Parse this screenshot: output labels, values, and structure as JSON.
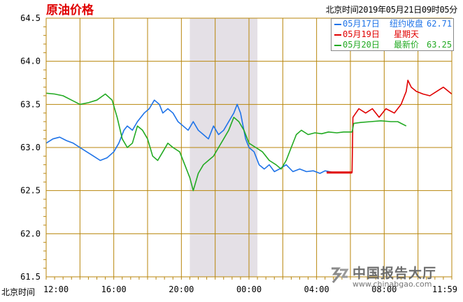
{
  "title": "原油价格",
  "timestamp": "北京时间2019年05月21日09时05分",
  "x_axis_prefix": "北京时间",
  "watermark": {
    "name": "中国报告大厅",
    "url": "www.chinabgao.com"
  },
  "chart_data": {
    "type": "line",
    "title": "原油价格",
    "ylim": [
      61.5,
      64.5
    ],
    "y_ticks": [
      "64.5",
      "64.0",
      "63.5",
      "63.0",
      "62.5",
      "62.0",
      "61.5"
    ],
    "y_tick_values": [
      64.5,
      64.0,
      63.5,
      63.0,
      62.5,
      62.0,
      61.5
    ],
    "x_ticks": [
      "12:00",
      "16:00",
      "20:00",
      "00:00",
      "04:00",
      "08:00",
      "11:59"
    ],
    "x_tick_hours": [
      0,
      4,
      8,
      12,
      16,
      20,
      24
    ],
    "x_range_hours": [
      0,
      24
    ],
    "shaded_region_hours": [
      8.5,
      12.5
    ],
    "grid": true,
    "legend_position": "top-right",
    "series": [
      {
        "date": "05月17日",
        "label": "纽约收盘",
        "value": "62.71",
        "color": "#1e73e8",
        "points": [
          [
            0,
            63.05
          ],
          [
            0.4,
            63.1
          ],
          [
            0.8,
            63.12
          ],
          [
            1.2,
            63.08
          ],
          [
            1.6,
            63.05
          ],
          [
            2,
            63.0
          ],
          [
            2.4,
            62.95
          ],
          [
            2.8,
            62.9
          ],
          [
            3.2,
            62.85
          ],
          [
            3.6,
            62.88
          ],
          [
            4,
            62.95
          ],
          [
            4.3,
            63.05
          ],
          [
            4.6,
            63.2
          ],
          [
            4.8,
            63.25
          ],
          [
            5.1,
            63.2
          ],
          [
            5.4,
            63.3
          ],
          [
            5.8,
            63.4
          ],
          [
            6.1,
            63.45
          ],
          [
            6.4,
            63.55
          ],
          [
            6.7,
            63.5
          ],
          [
            6.9,
            63.4
          ],
          [
            7.2,
            63.45
          ],
          [
            7.5,
            63.4
          ],
          [
            7.8,
            63.3
          ],
          [
            8.1,
            63.25
          ],
          [
            8.4,
            63.2
          ],
          [
            8.7,
            63.3
          ],
          [
            9,
            63.2
          ],
          [
            9.3,
            63.15
          ],
          [
            9.6,
            63.1
          ],
          [
            9.9,
            63.25
          ],
          [
            10.2,
            63.15
          ],
          [
            10.5,
            63.2
          ],
          [
            10.8,
            63.3
          ],
          [
            11.1,
            63.4
          ],
          [
            11.3,
            63.5
          ],
          [
            11.5,
            63.4
          ],
          [
            11.8,
            63.1
          ],
          [
            12,
            63.0
          ],
          [
            12.3,
            62.95
          ],
          [
            12.6,
            62.8
          ],
          [
            12.9,
            62.75
          ],
          [
            13.2,
            62.8
          ],
          [
            13.5,
            62.72
          ],
          [
            13.8,
            62.75
          ],
          [
            14.2,
            62.8
          ],
          [
            14.6,
            62.72
          ],
          [
            15,
            62.75
          ],
          [
            15.4,
            62.72
          ],
          [
            15.8,
            62.73
          ],
          [
            16.2,
            62.7
          ],
          [
            16.5,
            62.73
          ],
          [
            17,
            62.71
          ]
        ]
      },
      {
        "date": "05月19日",
        "label": "星期天",
        "value": "",
        "color": "#e00000",
        "points": [
          [
            16.6,
            62.71
          ],
          [
            18.1,
            62.71
          ],
          [
            18.15,
            63.35
          ],
          [
            18.5,
            63.45
          ],
          [
            18.9,
            63.4
          ],
          [
            19.3,
            63.45
          ],
          [
            19.7,
            63.35
          ],
          [
            20.1,
            63.45
          ],
          [
            20.6,
            63.4
          ],
          [
            21,
            63.5
          ],
          [
            21.3,
            63.65
          ],
          [
            21.4,
            63.78
          ],
          [
            21.6,
            63.7
          ],
          [
            21.9,
            63.65
          ],
          [
            22.3,
            63.62
          ],
          [
            22.7,
            63.6
          ],
          [
            23.1,
            63.65
          ],
          [
            23.5,
            63.7
          ],
          [
            24,
            63.62
          ]
        ]
      },
      {
        "date": "05月20日",
        "label": "最新价",
        "value": "63.25",
        "color": "#22aa22",
        "points": [
          [
            0,
            63.63
          ],
          [
            0.5,
            63.62
          ],
          [
            1,
            63.6
          ],
          [
            1.5,
            63.55
          ],
          [
            2,
            63.5
          ],
          [
            2.5,
            63.52
          ],
          [
            3,
            63.55
          ],
          [
            3.5,
            63.62
          ],
          [
            3.9,
            63.55
          ],
          [
            4.2,
            63.35
          ],
          [
            4.5,
            63.1
          ],
          [
            4.8,
            63.0
          ],
          [
            5.1,
            63.05
          ],
          [
            5.4,
            63.25
          ],
          [
            5.7,
            63.2
          ],
          [
            6,
            63.1
          ],
          [
            6.3,
            62.9
          ],
          [
            6.6,
            62.85
          ],
          [
            6.9,
            62.95
          ],
          [
            7.2,
            63.05
          ],
          [
            7.5,
            63.0
          ],
          [
            7.9,
            62.95
          ],
          [
            8.2,
            62.8
          ],
          [
            8.5,
            62.65
          ],
          [
            8.7,
            62.5
          ],
          [
            9,
            62.7
          ],
          [
            9.3,
            62.8
          ],
          [
            9.6,
            62.85
          ],
          [
            9.9,
            62.9
          ],
          [
            10.2,
            63.0
          ],
          [
            10.5,
            63.1
          ],
          [
            10.8,
            63.2
          ],
          [
            11.1,
            63.35
          ],
          [
            11.4,
            63.3
          ],
          [
            11.7,
            63.2
          ],
          [
            12,
            63.05
          ],
          [
            12.4,
            63.0
          ],
          [
            12.8,
            62.95
          ],
          [
            13.2,
            62.85
          ],
          [
            13.6,
            62.8
          ],
          [
            13.9,
            62.75
          ],
          [
            14.2,
            62.85
          ],
          [
            14.5,
            63.0
          ],
          [
            14.8,
            63.15
          ],
          [
            15.1,
            63.2
          ],
          [
            15.5,
            63.15
          ],
          [
            15.9,
            63.17
          ],
          [
            16.3,
            63.16
          ],
          [
            16.7,
            63.18
          ],
          [
            17.2,
            63.17
          ],
          [
            17.6,
            63.18
          ],
          [
            18.1,
            63.18
          ],
          [
            18.2,
            63.28
          ],
          [
            18.6,
            63.29
          ],
          [
            19.2,
            63.3
          ],
          [
            19.8,
            63.31
          ],
          [
            20.4,
            63.3
          ],
          [
            20.8,
            63.3
          ],
          [
            21,
            63.28
          ],
          [
            21.3,
            63.25
          ]
        ]
      }
    ]
  }
}
